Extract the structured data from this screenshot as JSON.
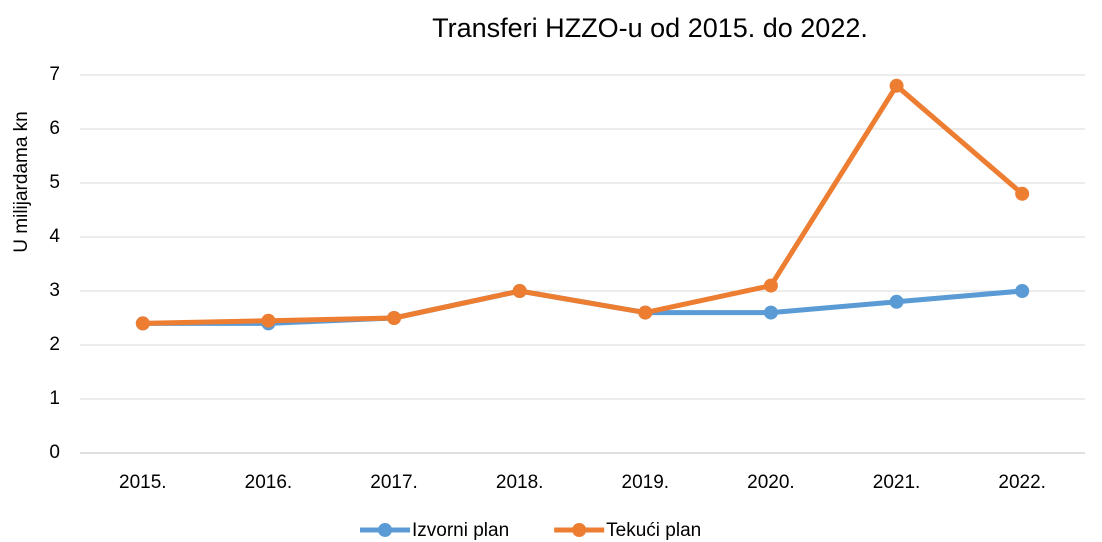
{
  "chart_data": {
    "type": "line",
    "title": "Transferi HZZO-u od 2015. do 2022.",
    "y_label": "U milijardama kn",
    "categories": [
      "2015.",
      "2016.",
      "2017.",
      "2018.",
      "2019.",
      "2020.",
      "2021.",
      "2022."
    ],
    "series": [
      {
        "name": "Izvorni plan",
        "color": "#5b9bd5",
        "values": [
          2.4,
          2.4,
          2.5,
          3.0,
          2.6,
          2.6,
          2.8,
          3.0
        ]
      },
      {
        "name": "Tekući plan",
        "color": "#ed7d31",
        "values": [
          2.4,
          2.45,
          2.5,
          3.0,
          2.6,
          3.1,
          6.8,
          4.8
        ]
      }
    ],
    "ylim": [
      0,
      7
    ],
    "yticks": [
      0,
      1,
      2,
      3,
      4,
      5,
      6,
      7
    ],
    "grid": true,
    "legend": "bottom"
  }
}
